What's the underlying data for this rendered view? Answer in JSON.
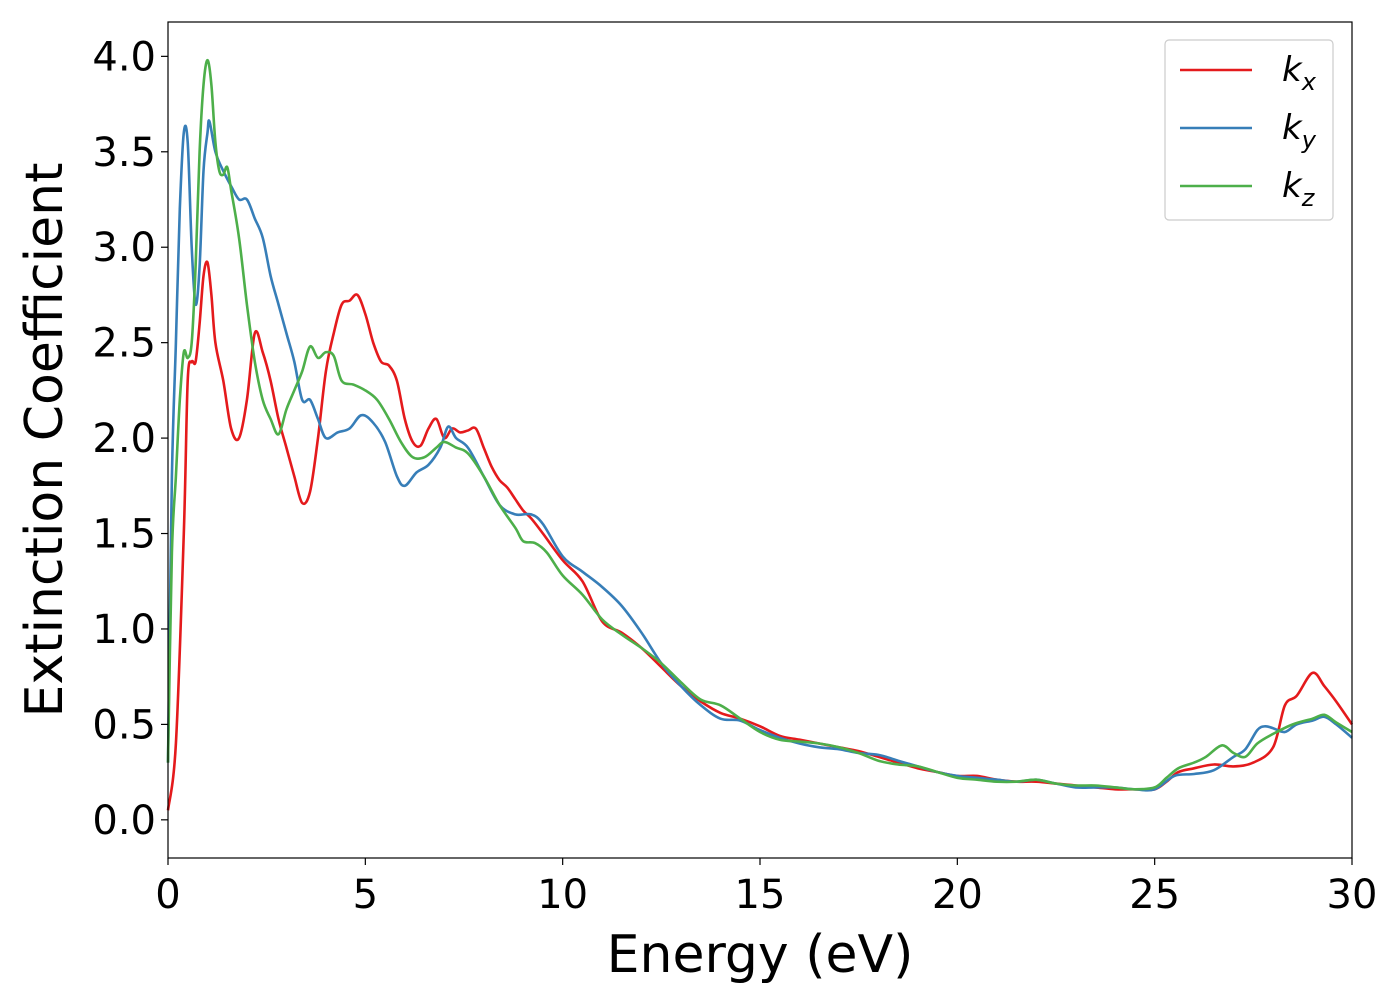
{
  "chart_data": {
    "type": "line",
    "title": "",
    "xlabel": "Energy (eV)",
    "ylabel": "Extinction Coefficient",
    "xlim": [
      0,
      30
    ],
    "ylim": [
      -0.2,
      4.18
    ],
    "xticks": [
      0,
      5,
      10,
      15,
      20,
      25,
      30
    ],
    "yticks": [
      0.0,
      0.5,
      1.0,
      1.5,
      2.0,
      2.5,
      3.0,
      3.5,
      4.0
    ],
    "xtick_labels": [
      "0",
      "5",
      "10",
      "15",
      "20",
      "25",
      "30"
    ],
    "ytick_labels": [
      "0.0",
      "0.5",
      "1.0",
      "1.5",
      "2.0",
      "2.5",
      "3.0",
      "3.5",
      "4.0"
    ],
    "grid": false,
    "legend_position": "top-right",
    "series": [
      {
        "name": "kx",
        "name_base": "k",
        "name_sub": "x",
        "color": "#e41a1c",
        "points": [
          [
            0,
            0.05
          ],
          [
            0.2,
            0.4
          ],
          [
            0.4,
            1.5
          ],
          [
            0.5,
            2.3
          ],
          [
            0.6,
            2.4
          ],
          [
            0.7,
            2.4
          ],
          [
            0.8,
            2.6
          ],
          [
            0.9,
            2.85
          ],
          [
            1.0,
            2.92
          ],
          [
            1.1,
            2.75
          ],
          [
            1.2,
            2.5
          ],
          [
            1.4,
            2.3
          ],
          [
            1.6,
            2.05
          ],
          [
            1.8,
            2.0
          ],
          [
            2.0,
            2.2
          ],
          [
            2.2,
            2.55
          ],
          [
            2.4,
            2.45
          ],
          [
            2.6,
            2.3
          ],
          [
            2.8,
            2.1
          ],
          [
            3.0,
            1.95
          ],
          [
            3.2,
            1.8
          ],
          [
            3.4,
            1.66
          ],
          [
            3.6,
            1.72
          ],
          [
            3.8,
            2.0
          ],
          [
            4.0,
            2.35
          ],
          [
            4.2,
            2.55
          ],
          [
            4.4,
            2.7
          ],
          [
            4.6,
            2.72
          ],
          [
            4.8,
            2.75
          ],
          [
            5.0,
            2.65
          ],
          [
            5.2,
            2.5
          ],
          [
            5.4,
            2.4
          ],
          [
            5.6,
            2.38
          ],
          [
            5.8,
            2.3
          ],
          [
            6.0,
            2.1
          ],
          [
            6.2,
            1.98
          ],
          [
            6.4,
            1.96
          ],
          [
            6.6,
            2.05
          ],
          [
            6.8,
            2.1
          ],
          [
            7.0,
            2.0
          ],
          [
            7.2,
            2.05
          ],
          [
            7.4,
            2.03
          ],
          [
            7.6,
            2.04
          ],
          [
            7.8,
            2.05
          ],
          [
            8.0,
            1.95
          ],
          [
            8.2,
            1.85
          ],
          [
            8.4,
            1.78
          ],
          [
            8.6,
            1.74
          ],
          [
            8.8,
            1.68
          ],
          [
            9.0,
            1.62
          ],
          [
            9.2,
            1.58
          ],
          [
            9.5,
            1.5
          ],
          [
            10,
            1.36
          ],
          [
            10.5,
            1.25
          ],
          [
            11,
            1.04
          ],
          [
            11.5,
            0.98
          ],
          [
            12,
            0.9
          ],
          [
            12.5,
            0.8
          ],
          [
            13,
            0.7
          ],
          [
            13.5,
            0.62
          ],
          [
            14,
            0.56
          ],
          [
            14.5,
            0.53
          ],
          [
            15,
            0.49
          ],
          [
            15.5,
            0.44
          ],
          [
            16,
            0.42
          ],
          [
            16.5,
            0.4
          ],
          [
            17,
            0.38
          ],
          [
            17.5,
            0.36
          ],
          [
            18,
            0.33
          ],
          [
            18.5,
            0.3
          ],
          [
            19,
            0.27
          ],
          [
            19.5,
            0.25
          ],
          [
            20,
            0.23
          ],
          [
            20.5,
            0.23
          ],
          [
            21,
            0.21
          ],
          [
            21.5,
            0.2
          ],
          [
            22,
            0.2
          ],
          [
            22.5,
            0.19
          ],
          [
            23,
            0.18
          ],
          [
            23.5,
            0.17
          ],
          [
            24,
            0.16
          ],
          [
            24.5,
            0.16
          ],
          [
            25,
            0.16
          ],
          [
            25.3,
            0.2
          ],
          [
            25.6,
            0.25
          ],
          [
            26,
            0.27
          ],
          [
            26.5,
            0.29
          ],
          [
            27,
            0.28
          ],
          [
            27.5,
            0.3
          ],
          [
            28,
            0.38
          ],
          [
            28.3,
            0.6
          ],
          [
            28.6,
            0.65
          ],
          [
            29.0,
            0.77
          ],
          [
            29.3,
            0.7
          ],
          [
            29.6,
            0.62
          ],
          [
            30,
            0.5
          ]
        ]
      },
      {
        "name": "ky",
        "name_base": "k",
        "name_sub": "y",
        "color": "#377eb8",
        "points": [
          [
            0,
            0.3
          ],
          [
            0.1,
            1.8
          ],
          [
            0.2,
            2.5
          ],
          [
            0.3,
            3.2
          ],
          [
            0.4,
            3.6
          ],
          [
            0.5,
            3.55
          ],
          [
            0.6,
            3.0
          ],
          [
            0.7,
            2.7
          ],
          [
            0.8,
            2.9
          ],
          [
            0.9,
            3.4
          ],
          [
            1.0,
            3.6
          ],
          [
            1.05,
            3.66
          ],
          [
            1.2,
            3.5
          ],
          [
            1.4,
            3.4
          ],
          [
            1.6,
            3.32
          ],
          [
            1.8,
            3.25
          ],
          [
            2.0,
            3.25
          ],
          [
            2.2,
            3.15
          ],
          [
            2.4,
            3.05
          ],
          [
            2.6,
            2.85
          ],
          [
            2.8,
            2.7
          ],
          [
            3.0,
            2.55
          ],
          [
            3.2,
            2.4
          ],
          [
            3.4,
            2.2
          ],
          [
            3.6,
            2.2
          ],
          [
            3.8,
            2.1
          ],
          [
            4.0,
            2.0
          ],
          [
            4.3,
            2.03
          ],
          [
            4.6,
            2.05
          ],
          [
            4.9,
            2.12
          ],
          [
            5.2,
            2.08
          ],
          [
            5.5,
            1.98
          ],
          [
            5.8,
            1.8
          ],
          [
            6.0,
            1.75
          ],
          [
            6.3,
            1.82
          ],
          [
            6.6,
            1.86
          ],
          [
            6.9,
            1.95
          ],
          [
            7.1,
            2.06
          ],
          [
            7.3,
            2.0
          ],
          [
            7.6,
            1.95
          ],
          [
            8.0,
            1.8
          ],
          [
            8.4,
            1.65
          ],
          [
            8.8,
            1.6
          ],
          [
            9.2,
            1.6
          ],
          [
            9.5,
            1.55
          ],
          [
            10,
            1.38
          ],
          [
            10.5,
            1.3
          ],
          [
            11,
            1.22
          ],
          [
            11.5,
            1.12
          ],
          [
            12,
            0.98
          ],
          [
            12.5,
            0.82
          ],
          [
            13,
            0.7
          ],
          [
            13.5,
            0.6
          ],
          [
            14,
            0.53
          ],
          [
            14.5,
            0.52
          ],
          [
            15,
            0.47
          ],
          [
            15.5,
            0.43
          ],
          [
            16,
            0.4
          ],
          [
            16.5,
            0.38
          ],
          [
            17,
            0.37
          ],
          [
            17.5,
            0.35
          ],
          [
            18,
            0.34
          ],
          [
            18.5,
            0.31
          ],
          [
            19,
            0.28
          ],
          [
            19.5,
            0.25
          ],
          [
            20,
            0.23
          ],
          [
            20.5,
            0.22
          ],
          [
            21,
            0.21
          ],
          [
            21.5,
            0.2
          ],
          [
            22,
            0.21
          ],
          [
            22.5,
            0.19
          ],
          [
            23,
            0.17
          ],
          [
            23.5,
            0.17
          ],
          [
            24,
            0.17
          ],
          [
            24.5,
            0.16
          ],
          [
            25,
            0.16
          ],
          [
            25.5,
            0.23
          ],
          [
            26,
            0.24
          ],
          [
            26.5,
            0.26
          ],
          [
            27,
            0.33
          ],
          [
            27.3,
            0.37
          ],
          [
            27.6,
            0.47
          ],
          [
            27.8,
            0.49
          ],
          [
            28.0,
            0.48
          ],
          [
            28.3,
            0.46
          ],
          [
            28.6,
            0.5
          ],
          [
            29,
            0.52
          ],
          [
            29.3,
            0.54
          ],
          [
            29.6,
            0.5
          ],
          [
            30,
            0.43
          ]
        ]
      },
      {
        "name": "kz",
        "name_base": "k",
        "name_sub": "z",
        "color": "#4daf4a",
        "points": [
          [
            0,
            0.3
          ],
          [
            0.1,
            1.4
          ],
          [
            0.2,
            1.8
          ],
          [
            0.3,
            2.2
          ],
          [
            0.4,
            2.45
          ],
          [
            0.5,
            2.42
          ],
          [
            0.6,
            2.5
          ],
          [
            0.7,
            2.9
          ],
          [
            0.8,
            3.5
          ],
          [
            0.9,
            3.85
          ],
          [
            1.0,
            3.98
          ],
          [
            1.1,
            3.85
          ],
          [
            1.2,
            3.55
          ],
          [
            1.3,
            3.4
          ],
          [
            1.4,
            3.38
          ],
          [
            1.5,
            3.42
          ],
          [
            1.6,
            3.3
          ],
          [
            1.8,
            3.05
          ],
          [
            2.0,
            2.7
          ],
          [
            2.2,
            2.4
          ],
          [
            2.4,
            2.2
          ],
          [
            2.6,
            2.1
          ],
          [
            2.8,
            2.02
          ],
          [
            3.0,
            2.15
          ],
          [
            3.2,
            2.25
          ],
          [
            3.4,
            2.35
          ],
          [
            3.6,
            2.48
          ],
          [
            3.8,
            2.42
          ],
          [
            4.0,
            2.45
          ],
          [
            4.2,
            2.43
          ],
          [
            4.4,
            2.3
          ],
          [
            4.7,
            2.28
          ],
          [
            5.0,
            2.25
          ],
          [
            5.3,
            2.2
          ],
          [
            5.6,
            2.1
          ],
          [
            5.9,
            1.98
          ],
          [
            6.2,
            1.9
          ],
          [
            6.5,
            1.9
          ],
          [
            6.8,
            1.95
          ],
          [
            7.0,
            1.98
          ],
          [
            7.3,
            1.95
          ],
          [
            7.6,
            1.92
          ],
          [
            8.0,
            1.8
          ],
          [
            8.4,
            1.65
          ],
          [
            8.8,
            1.53
          ],
          [
            9.0,
            1.46
          ],
          [
            9.3,
            1.45
          ],
          [
            9.6,
            1.4
          ],
          [
            10,
            1.28
          ],
          [
            10.5,
            1.18
          ],
          [
            11,
            1.05
          ],
          [
            11.5,
            0.97
          ],
          [
            12,
            0.9
          ],
          [
            12.5,
            0.82
          ],
          [
            13,
            0.72
          ],
          [
            13.5,
            0.63
          ],
          [
            14,
            0.6
          ],
          [
            14.5,
            0.53
          ],
          [
            15,
            0.46
          ],
          [
            15.5,
            0.42
          ],
          [
            16,
            0.41
          ],
          [
            16.5,
            0.4
          ],
          [
            17,
            0.38
          ],
          [
            17.5,
            0.35
          ],
          [
            18,
            0.31
          ],
          [
            18.5,
            0.29
          ],
          [
            19,
            0.28
          ],
          [
            19.5,
            0.25
          ],
          [
            20,
            0.22
          ],
          [
            20.5,
            0.21
          ],
          [
            21,
            0.2
          ],
          [
            21.5,
            0.2
          ],
          [
            22,
            0.21
          ],
          [
            22.5,
            0.19
          ],
          [
            23,
            0.18
          ],
          [
            23.5,
            0.18
          ],
          [
            24,
            0.17
          ],
          [
            24.5,
            0.16
          ],
          [
            25,
            0.17
          ],
          [
            25.3,
            0.22
          ],
          [
            25.6,
            0.27
          ],
          [
            26,
            0.3
          ],
          [
            26.3,
            0.33
          ],
          [
            26.7,
            0.39
          ],
          [
            27,
            0.35
          ],
          [
            27.3,
            0.33
          ],
          [
            27.6,
            0.4
          ],
          [
            28,
            0.45
          ],
          [
            28.5,
            0.5
          ],
          [
            29,
            0.53
          ],
          [
            29.3,
            0.55
          ],
          [
            29.6,
            0.51
          ],
          [
            30,
            0.46
          ]
        ]
      }
    ]
  }
}
